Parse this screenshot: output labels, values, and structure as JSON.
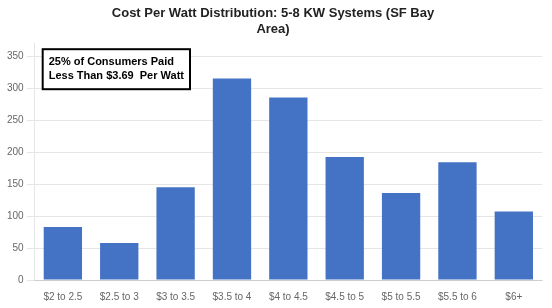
{
  "chart_data": {
    "type": "bar",
    "title": "Cost Per Watt Distribution: 5-8 KW Systems (SF Bay\nArea)",
    "categories": [
      "$2 to 2.5",
      "$2.5 to 3",
      "$3 to 3.5",
      "$3.5 to 4",
      "$4 to 4.5",
      "$4.5 to 5",
      "$5 to 5.5",
      "$5.5 to 6",
      "$6+"
    ],
    "values": [
      83,
      58,
      145,
      315,
      285,
      192,
      136,
      184,
      107
    ],
    "color": "#4472C4",
    "ylim": [
      0,
      370
    ],
    "yticks": [
      0,
      50,
      100,
      150,
      200,
      250,
      300,
      350
    ],
    "grid": true,
    "annotations": [
      "25% of Consumers Paid\nLess Than $3.69  Per Watt"
    ]
  }
}
